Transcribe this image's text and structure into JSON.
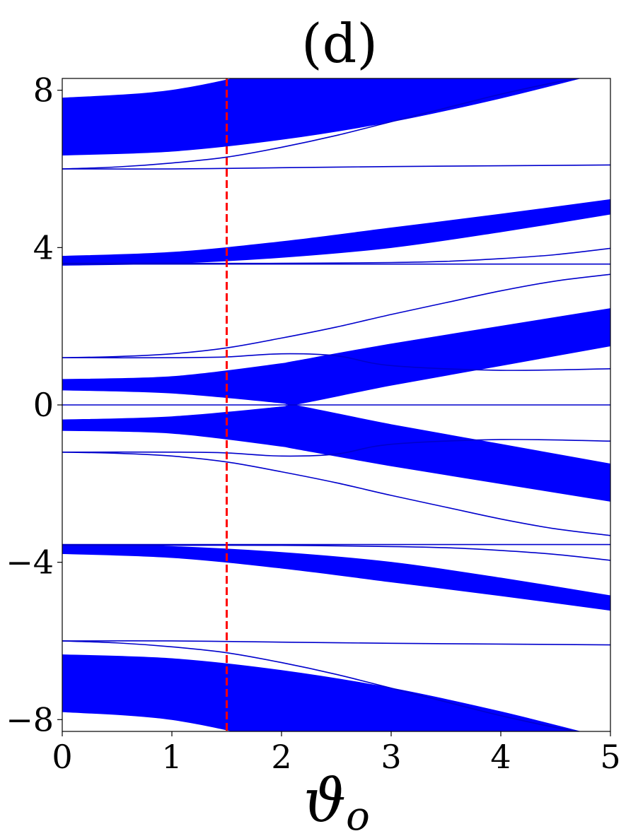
{
  "chart_data": {
    "type": "line",
    "title": "(d)",
    "xlabel": "ϑ",
    "xlabel_subscript": "o",
    "ylabel": "",
    "xlim": [
      0,
      5
    ],
    "ylim": [
      -8.3,
      8.3
    ],
    "xticks": [
      0,
      1,
      2,
      3,
      4,
      5
    ],
    "xtick_labels": [
      "0",
      "1",
      "2",
      "3",
      "4",
      "5"
    ],
    "yticks": [
      -8,
      -4,
      0,
      4,
      8
    ],
    "ytick_labels": [
      "−8",
      "−4",
      "0",
      "4",
      "8"
    ],
    "grid": false,
    "band_color": "#0000ff",
    "line_color": "#0000cc",
    "marker_color": "#ff0000",
    "bands": [
      {
        "x": [
          0,
          1,
          2,
          3,
          4,
          5
        ],
        "upper": [
          7.8,
          8.0,
          8.6,
          9.4,
          10.2,
          11.0
        ],
        "lower": [
          6.35,
          6.45,
          6.75,
          7.2,
          7.8,
          8.5
        ]
      },
      {
        "x": [
          0,
          1,
          2,
          3,
          4,
          5
        ],
        "upper": [
          3.78,
          3.88,
          4.15,
          4.5,
          4.85,
          5.22
        ],
        "lower": [
          3.55,
          3.6,
          3.75,
          4.0,
          4.4,
          4.85
        ]
      },
      {
        "x": [
          0,
          1,
          2,
          2.1,
          3,
          4,
          5
        ],
        "upper": [
          0.65,
          0.72,
          1.05,
          1.1,
          1.55,
          2.0,
          2.45
        ],
        "lower": [
          0.38,
          0.3,
          0.05,
          0.0,
          0.5,
          1.0,
          1.5
        ]
      },
      {
        "x": [
          0,
          1,
          2,
          2.1,
          3,
          4,
          5
        ],
        "upper": [
          -0.38,
          -0.3,
          -0.05,
          0.0,
          -0.5,
          -1.0,
          -1.5
        ],
        "lower": [
          -0.65,
          -0.72,
          -1.05,
          -1.1,
          -1.55,
          -2.0,
          -2.45
        ]
      },
      {
        "x": [
          0,
          1,
          2,
          3,
          4,
          5
        ],
        "upper": [
          -3.55,
          -3.6,
          -3.75,
          -4.0,
          -4.4,
          -4.85
        ],
        "lower": [
          -3.78,
          -3.88,
          -4.15,
          -4.5,
          -4.85,
          -5.22
        ]
      },
      {
        "x": [
          0,
          1,
          2,
          3,
          4,
          5
        ],
        "upper": [
          -6.35,
          -6.45,
          -6.75,
          -7.2,
          -7.8,
          -8.5
        ],
        "lower": [
          -7.8,
          -8.0,
          -8.6,
          -9.4,
          -10.2,
          -11.0
        ]
      }
    ],
    "series": [
      {
        "x": [
          0,
          1,
          2,
          3,
          4,
          5
        ],
        "y": [
          6.0,
          6.0,
          6.03,
          6.06,
          6.08,
          6.1
        ]
      },
      {
        "x": [
          0,
          0.5,
          1,
          1.5,
          2,
          2.5,
          3,
          3.5,
          4,
          4.5,
          5
        ],
        "y": [
          6.0,
          6.05,
          6.15,
          6.3,
          6.55,
          6.85,
          7.2,
          7.55,
          7.9,
          8.2,
          8.45
        ]
      },
      {
        "x": [
          0,
          1,
          2,
          3,
          4,
          5
        ],
        "y": [
          3.58,
          3.58,
          3.58,
          3.58,
          3.58,
          3.58
        ]
      },
      {
        "x": [
          0,
          1,
          2,
          3,
          3.5,
          4,
          4.5,
          5
        ],
        "y": [
          3.6,
          3.6,
          3.6,
          3.62,
          3.65,
          3.72,
          3.82,
          3.98
        ]
      },
      {
        "x": [
          0,
          0.5,
          1,
          1.5,
          2,
          2.5,
          3,
          3.5,
          4,
          4.5,
          5
        ],
        "y": [
          1.2,
          1.23,
          1.3,
          1.45,
          1.7,
          1.98,
          2.3,
          2.6,
          2.9,
          3.15,
          3.32
        ]
      },
      {
        "x": [
          0,
          1,
          1.5,
          2,
          2.5,
          3,
          4,
          5
        ],
        "y": [
          1.2,
          1.2,
          1.22,
          1.3,
          1.25,
          1.0,
          0.88,
          0.92
        ]
      },
      {
        "x": [
          0,
          1,
          2,
          2.5,
          3,
          4,
          5
        ],
        "y": [
          0.0,
          0.0,
          0.0,
          0.0,
          0.0,
          0.0,
          0.0
        ]
      },
      {
        "x": [
          0,
          1,
          1.5,
          2,
          2.5,
          3,
          4,
          5
        ],
        "y": [
          -1.2,
          -1.2,
          -1.22,
          -1.3,
          -1.25,
          -1.0,
          -0.88,
          -0.92
        ]
      },
      {
        "x": [
          0,
          0.5,
          1,
          1.5,
          2,
          2.5,
          3,
          3.5,
          4,
          4.5,
          5
        ],
        "y": [
          -1.2,
          -1.23,
          -1.3,
          -1.45,
          -1.7,
          -1.98,
          -2.3,
          -2.6,
          -2.9,
          -3.15,
          -3.32
        ]
      },
      {
        "x": [
          0,
          1,
          2,
          3,
          4,
          5
        ],
        "y": [
          -3.55,
          -3.55,
          -3.55,
          -3.55,
          -3.55,
          -3.55
        ]
      },
      {
        "x": [
          0,
          1,
          2,
          3,
          3.5,
          4,
          4.5,
          5
        ],
        "y": [
          -3.57,
          -3.57,
          -3.57,
          -3.6,
          -3.63,
          -3.7,
          -3.8,
          -3.95
        ]
      },
      {
        "x": [
          0,
          1,
          2,
          3,
          4,
          5
        ],
        "y": [
          -6.0,
          -6.0,
          -6.03,
          -6.06,
          -6.08,
          -6.1
        ]
      },
      {
        "x": [
          0,
          0.5,
          1,
          1.5,
          2,
          2.5,
          3,
          3.5,
          4,
          4.5,
          5
        ],
        "y": [
          -6.0,
          -6.05,
          -6.15,
          -6.3,
          -6.55,
          -6.85,
          -7.2,
          -7.55,
          -7.9,
          -8.2,
          -8.45
        ]
      }
    ],
    "vline": {
      "x": 1.5,
      "style": "dashed"
    }
  }
}
